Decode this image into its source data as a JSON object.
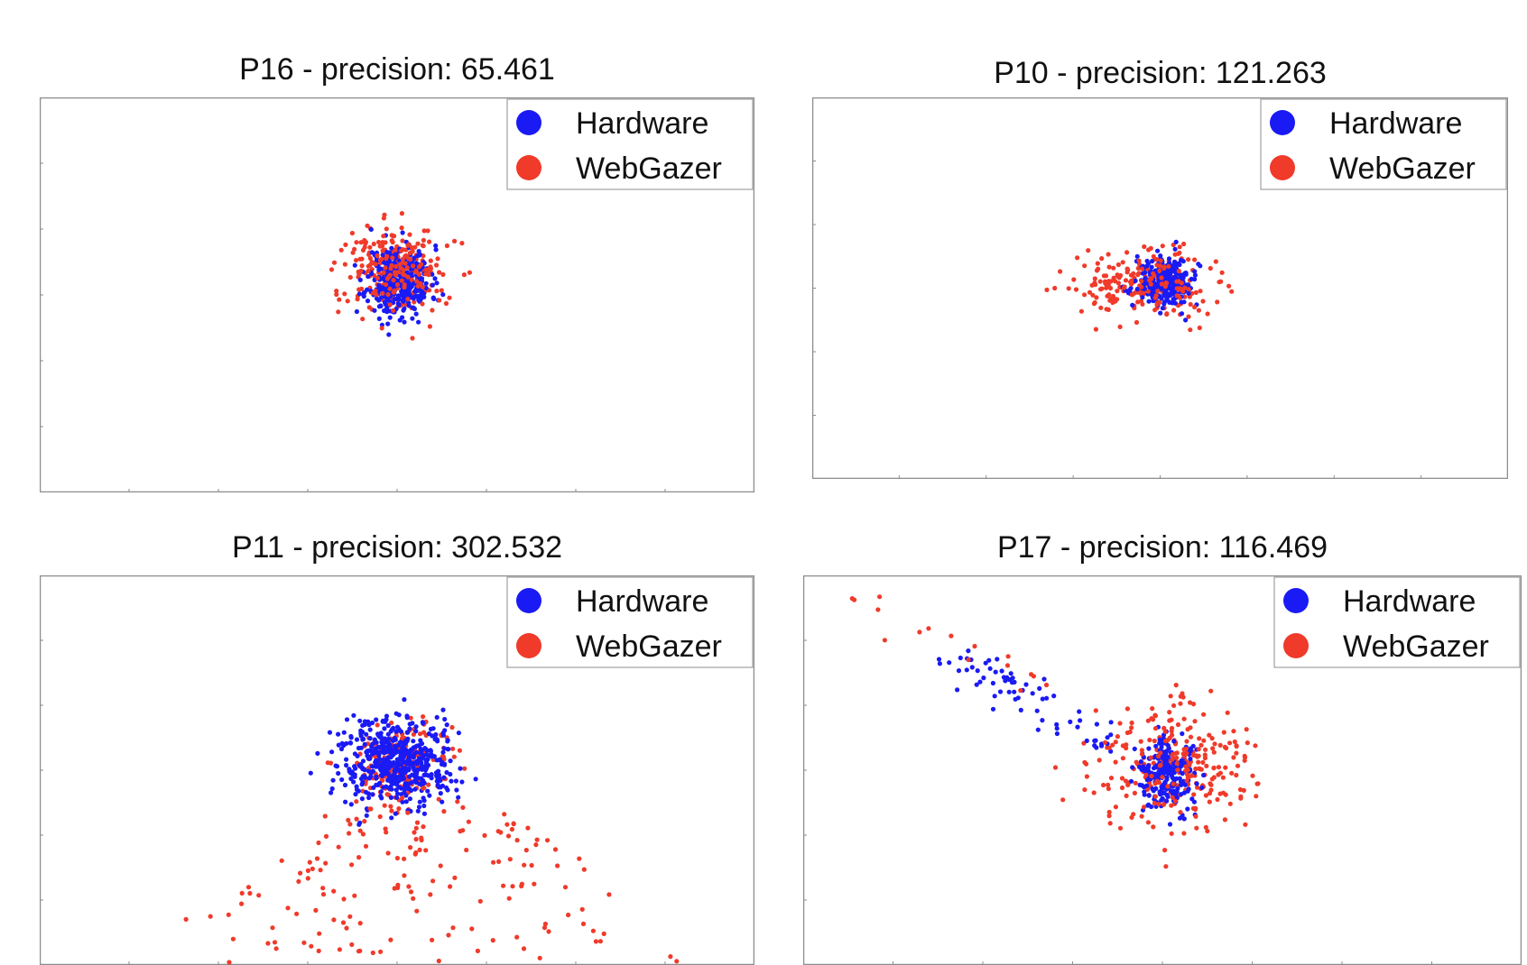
{
  "colors": {
    "hardware": "#1a1af5",
    "webgazer": "#f03a2a",
    "frame": "#8c8c8c"
  },
  "chart_data": [
    {
      "type": "scatter",
      "title": "P16 - precision: 65.461",
      "xlim": [
        0,
        100
      ],
      "ylim": [
        0,
        100
      ],
      "legend": {
        "placement": "top-right",
        "entries": [
          "Hardware",
          "WebGazer"
        ]
      },
      "series": [
        {
          "name": "Hardware",
          "color": "#1a1af5",
          "cluster": {
            "cx": 50.3,
            "cy": 53.5,
            "sx": 2.2,
            "sy": 4.5,
            "n": 360,
            "seed": 11
          }
        },
        {
          "name": "WebGazer",
          "color": "#f03a2a",
          "cluster": {
            "cx": 50.0,
            "cy": 56.0,
            "sx": 3.3,
            "sy": 5.5,
            "n": 300,
            "seed": 12
          }
        }
      ]
    },
    {
      "type": "scatter",
      "title": "P10 - precision: 121.263",
      "xlim": [
        0,
        100
      ],
      "ylim": [
        0,
        100
      ],
      "legend": {
        "placement": "top-right",
        "entries": [
          "Hardware",
          "WebGazer"
        ]
      },
      "series": [
        {
          "name": "Hardware",
          "color": "#1a1af5",
          "cluster": {
            "cx": 50.8,
            "cy": 51.5,
            "sx": 2.0,
            "sy": 3.2,
            "n": 300,
            "seed": 21
          }
        },
        {
          "name": "WebGazer",
          "color": "#f03a2a",
          "cluster": {
            "cx": 48.0,
            "cy": 51.0,
            "sx": 4.8,
            "sy": 4.2,
            "n": 240,
            "seed": 22
          }
        }
      ]
    },
    {
      "type": "scatter",
      "title": "P11 - precision: 302.532",
      "xlim": [
        0,
        100
      ],
      "ylim": [
        0,
        100
      ],
      "legend": {
        "placement": "top-right",
        "entries": [
          "Hardware",
          "WebGazer"
        ]
      },
      "series": [
        {
          "name": "Hardware",
          "color": "#1a1af5",
          "cluster": {
            "cx": 50.0,
            "cy": 52.0,
            "sx": 4.0,
            "sy": 5.5,
            "n": 520,
            "seed": 31
          }
        },
        {
          "name": "WebGazer",
          "color": "#f03a2a",
          "cluster": {
            "cx": 50.0,
            "cy": 52.0,
            "sx": 3.5,
            "sy": 5.0,
            "n": 200,
            "seed": 32
          },
          "spread": {
            "x0": 22,
            "x1": 85,
            "y0": 0,
            "y1": 42,
            "n": 170,
            "seed": 33
          }
        }
      ]
    },
    {
      "type": "scatter",
      "title": "P17 - precision: 116.469",
      "xlim": [
        0,
        100
      ],
      "ylim": [
        0,
        100
      ],
      "legend": {
        "placement": "top-right",
        "entries": [
          "Hardware",
          "WebGazer"
        ]
      },
      "series": [
        {
          "name": "Hardware",
          "color": "#1a1af5",
          "cluster": {
            "cx": 50.5,
            "cy": 49.0,
            "sx": 2.0,
            "sy": 4.5,
            "n": 240,
            "seed": 41
          },
          "trail": {
            "x0": 20,
            "y0": 80,
            "x1": 45,
            "y1": 55,
            "n": 70,
            "seed": 42
          }
        },
        {
          "name": "WebGazer",
          "color": "#f03a2a",
          "cluster": {
            "cx": 51.5,
            "cy": 51.0,
            "sx": 5.5,
            "sy": 8.0,
            "n": 300,
            "seed": 43
          },
          "trail": {
            "x0": 3,
            "y0": 96,
            "x1": 45,
            "y1": 62,
            "n": 18,
            "seed": 44
          }
        }
      ]
    }
  ]
}
